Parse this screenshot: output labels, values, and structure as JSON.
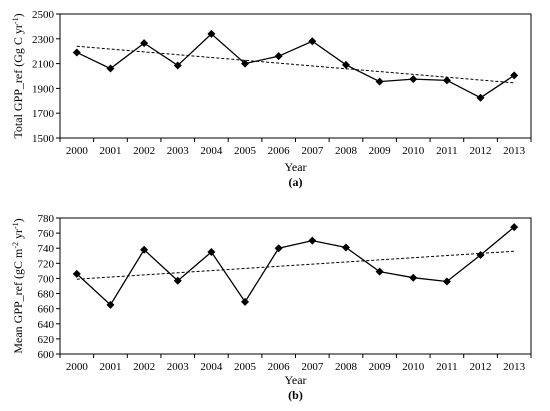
{
  "chart_data": [
    {
      "type": "line",
      "panel_label": "(a)",
      "xlabel": "Year",
      "ylabel_main": "Total GPP_ref (Gg C yr",
      "ylabel_sup": "-1",
      "ylabel_end": ")",
      "categories": [
        "2000",
        "2001",
        "2002",
        "2003",
        "2004",
        "2005",
        "2006",
        "2007",
        "2008",
        "2009",
        "2010",
        "2011",
        "2012",
        "2013"
      ],
      "ylim": [
        1500,
        2500
      ],
      "yticks": [
        1500,
        1700,
        1900,
        2100,
        2300,
        2500
      ],
      "series": [
        {
          "values": [
            2190,
            2060,
            2265,
            2085,
            2340,
            2100,
            2160,
            2280,
            2090,
            1955,
            1975,
            1965,
            1825,
            2005
          ],
          "color": "#000000",
          "marker": "diamond"
        }
      ],
      "trendline": {
        "style": "dashed",
        "start": 2240,
        "end": 1945
      },
      "grid": false,
      "legend": "none"
    },
    {
      "type": "line",
      "panel_label": "(b)",
      "xlabel": "Year",
      "ylabel_main": "Mean GPP_ref (gC m",
      "ylabel_sup": "-2",
      "ylabel_mid": " yr",
      "ylabel_sup2": "-1",
      "ylabel_end": ")",
      "categories": [
        "2000",
        "2001",
        "2002",
        "2003",
        "2004",
        "2005",
        "2006",
        "2007",
        "2008",
        "2009",
        "2010",
        "2011",
        "2012",
        "2013"
      ],
      "ylim": [
        600,
        780
      ],
      "yticks": [
        600,
        620,
        640,
        660,
        680,
        700,
        720,
        740,
        760,
        780
      ],
      "series": [
        {
          "values": [
            706,
            665,
            738,
            697,
            735,
            669,
            740,
            750,
            741,
            709,
            701,
            696,
            731,
            768
          ],
          "color": "#000000",
          "marker": "diamond"
        }
      ],
      "trendline": {
        "style": "dashed",
        "start": 699,
        "end": 736
      },
      "grid": false,
      "legend": "none"
    }
  ]
}
